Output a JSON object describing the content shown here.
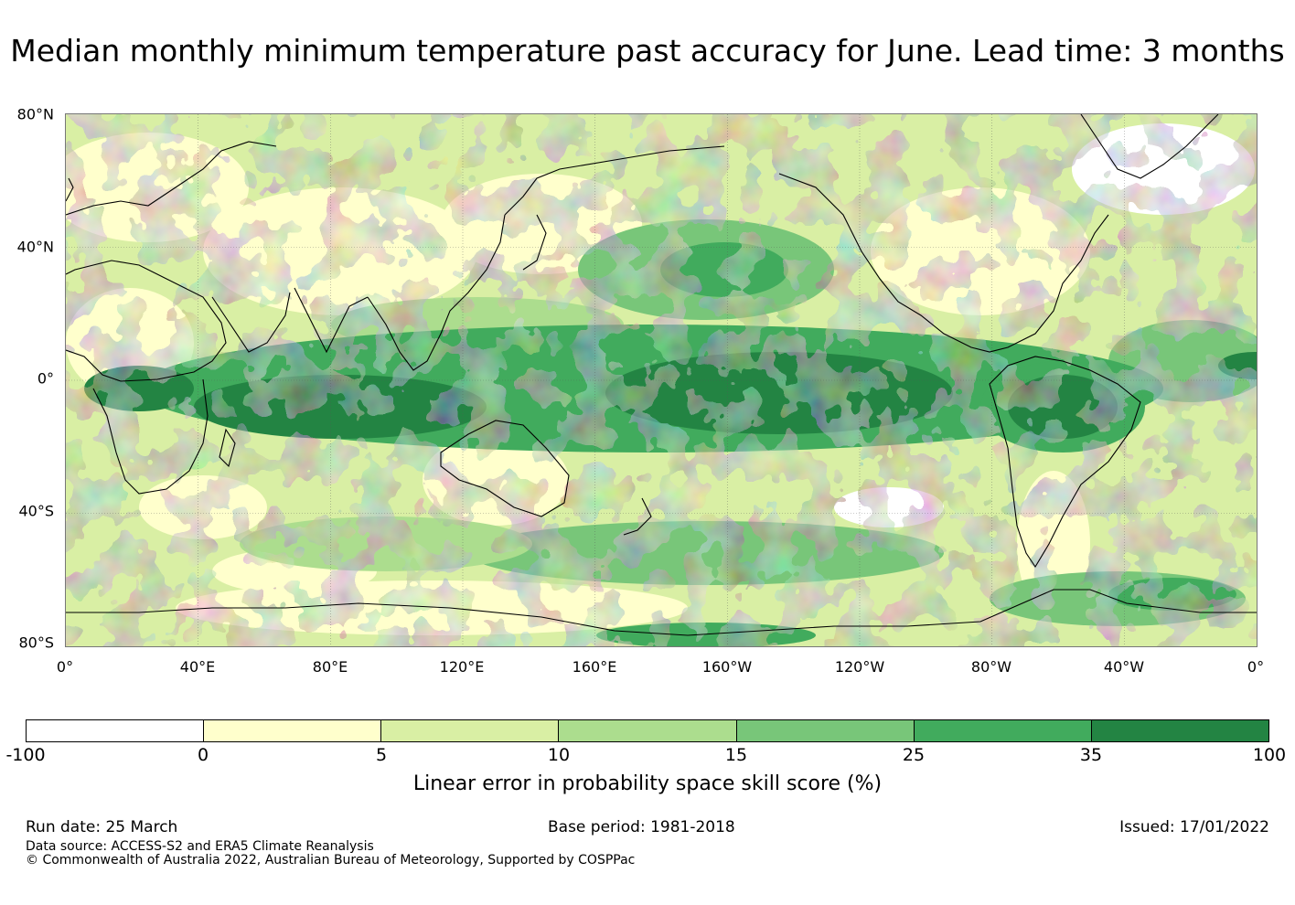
{
  "title": "Median monthly minimum temperature past accuracy for June. Lead time: 3 months",
  "map": {
    "projection": "equirectangular, centred on 180°",
    "lat_labels": [
      "80°N",
      "40°N",
      "0°",
      "40°S",
      "80°S"
    ],
    "lon_labels": [
      "0°",
      "40°E",
      "80°E",
      "120°E",
      "160°E",
      "160°W",
      "120°W",
      "80°W",
      "40°W",
      "0°"
    ]
  },
  "colorbar": {
    "label": "Linear error in probability space skill score (%)",
    "ticks": [
      "-100",
      "0",
      "5",
      "10",
      "15",
      "25",
      "35",
      "100"
    ],
    "colors": [
      "#ffffff",
      "#ffffcc",
      "#d9efa4",
      "#acdd8e",
      "#78c679",
      "#41ab5d",
      "#238443"
    ]
  },
  "footer": {
    "run_date": "Run date: 25 March",
    "base_period": "Base period: 1981-2018",
    "issued": "Issued: 17/01/2022",
    "data_source": "Data source: ACCESS-S2 and ERA5 Climate Reanalysis",
    "copyright": "© Commonwealth of Australia 2022, Australian Bureau of Meteorology, Supported by COSPPac"
  }
}
